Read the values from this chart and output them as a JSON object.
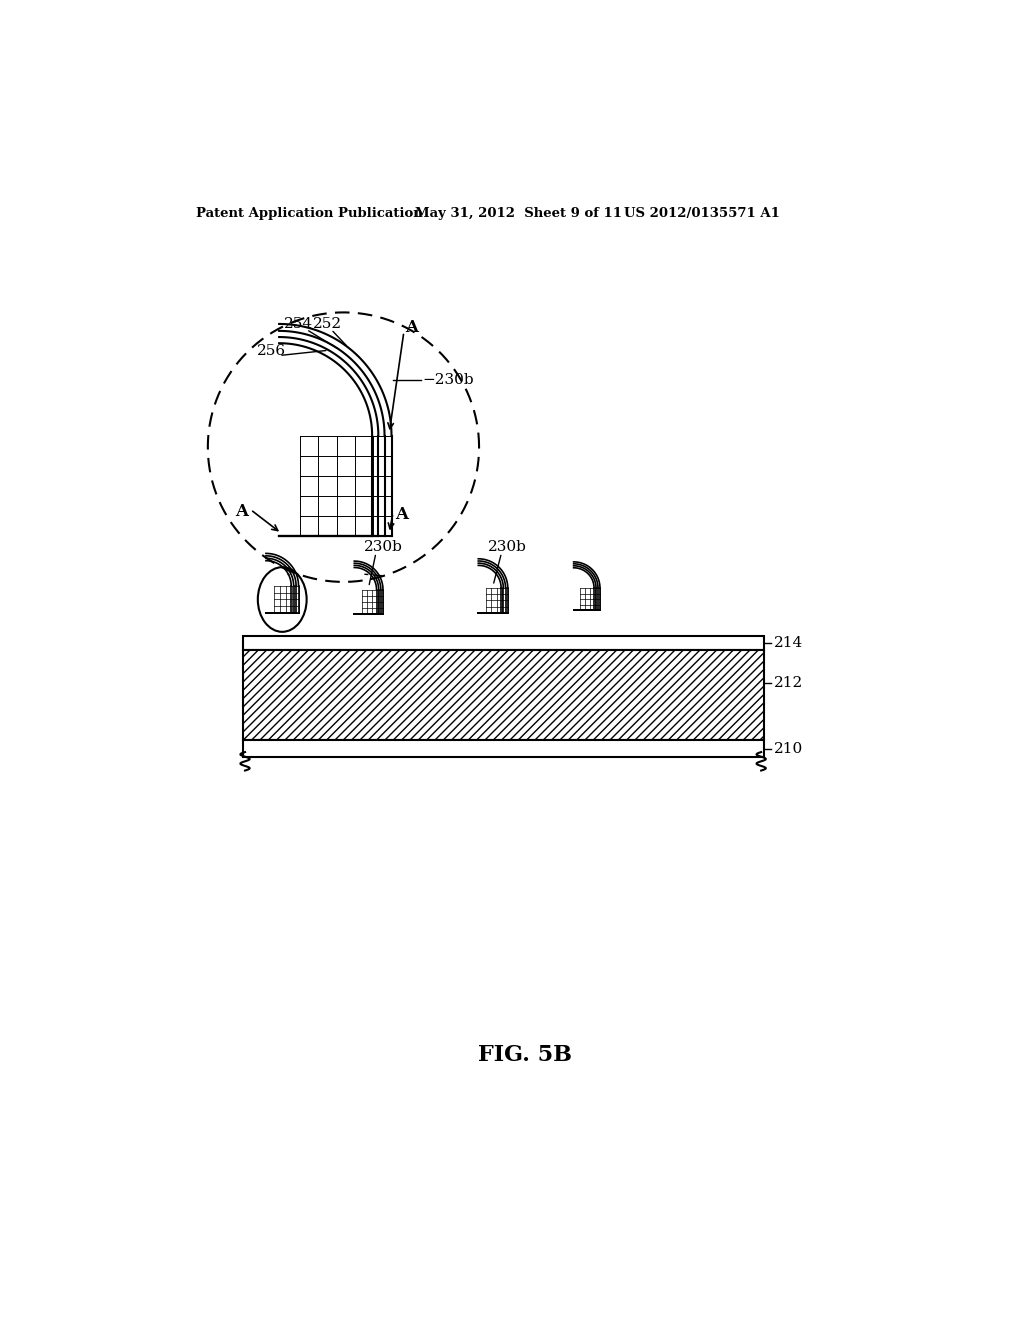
{
  "header_left": "Patent Application Publication",
  "header_mid": "May 31, 2012  Sheet 9 of 11",
  "header_right": "US 2012/0135571 A1",
  "fig_label": "FIG. 5B",
  "bg_color": "#ffffff",
  "line_color": "#000000"
}
